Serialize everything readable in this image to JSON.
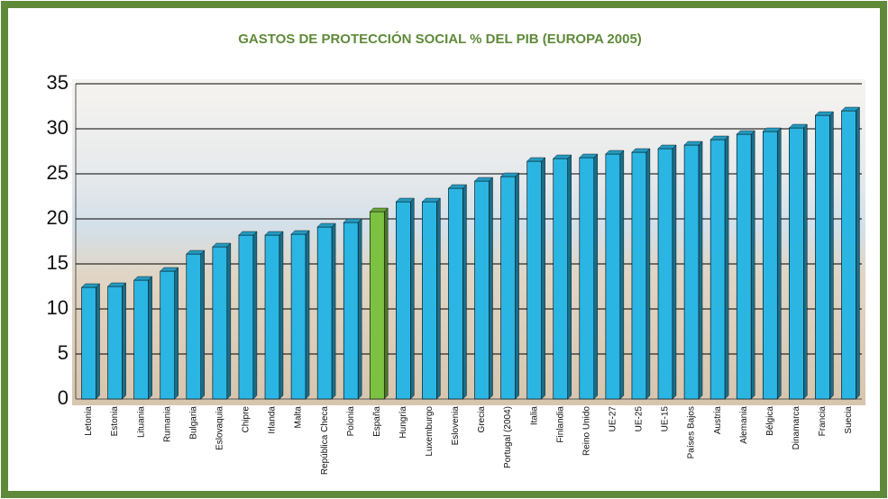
{
  "chart_data": {
    "type": "bar",
    "title": "GASTOS DE PROTECCIÓN SOCIAL % DEL PIB (EUROPA 2005)",
    "categories": [
      "Letonia",
      "Estonia",
      "Lituania",
      "Rumania",
      "Bulgaria",
      "Eslovaquia",
      "Chipre",
      "Irlanda",
      "Malta",
      "República Checa",
      "Polonia",
      "España",
      "Hungría",
      "Luxemburgo",
      "Eslovenia",
      "Grecia",
      "Portugal (2004)",
      "Italia",
      "Finlandia",
      "Reino Unido",
      "UE-27",
      "UE-25",
      "UE-15",
      "Países Bajos",
      "Austria",
      "Alemania",
      "Bélgica",
      "Dinamarca",
      "Francia",
      "Suecia"
    ],
    "values": [
      12.4,
      12.5,
      13.2,
      14.2,
      16.1,
      16.9,
      18.2,
      18.2,
      18.3,
      19.1,
      19.6,
      20.8,
      21.9,
      21.9,
      23.4,
      24.2,
      24.7,
      26.4,
      26.7,
      26.8,
      27.2,
      27.4,
      27.8,
      28.2,
      28.8,
      29.4,
      29.7,
      30.1,
      31.5,
      32.0
    ],
    "colors": [
      "#2bb5e3",
      "#2bb5e3",
      "#2bb5e3",
      "#2bb5e3",
      "#2bb5e3",
      "#2bb5e3",
      "#2bb5e3",
      "#2bb5e3",
      "#2bb5e3",
      "#2bb5e3",
      "#2bb5e3",
      "#7cc242",
      "#2bb5e3",
      "#2bb5e3",
      "#2bb5e3",
      "#2bb5e3",
      "#2bb5e3",
      "#2bb5e3",
      "#2bb5e3",
      "#2bb5e3",
      "#2bb5e3",
      "#2bb5e3",
      "#2bb5e3",
      "#2bb5e3",
      "#2bb5e3",
      "#2bb5e3",
      "#2bb5e3",
      "#2bb5e3",
      "#2bb5e3",
      "#2bb5e3"
    ],
    "ylim": [
      0,
      35
    ],
    "yticks": [
      0,
      5,
      10,
      15,
      20,
      25,
      30,
      35
    ],
    "grid": true
  }
}
